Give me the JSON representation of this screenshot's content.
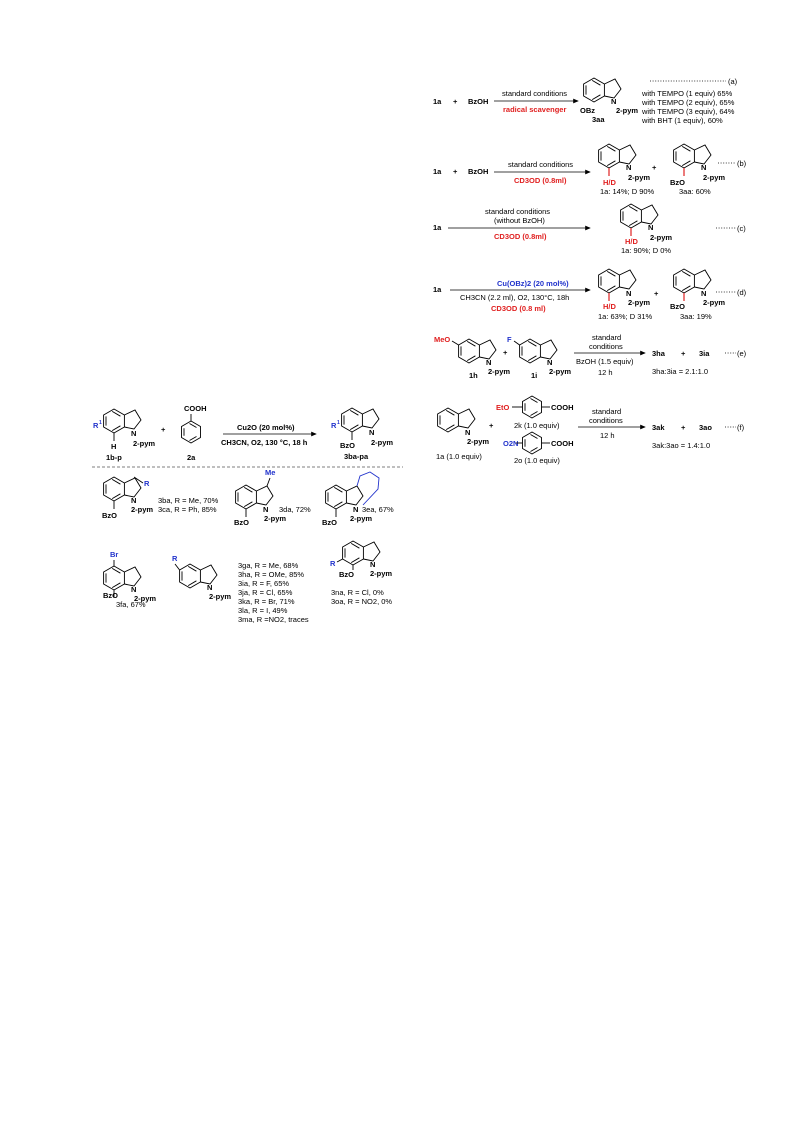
{
  "colors": {
    "red": "#e02020",
    "blue": "#2233cc",
    "black": "#000000"
  },
  "scheme_left": {
    "reactant_1": "1b-p",
    "reactant_2": "2a",
    "acid_group": "COOH",
    "substituent": "R",
    "sub_superscript": "1",
    "h_label": "H",
    "n_label": "N",
    "pym_label": "2-pym",
    "arrow_top": "Cu2O (20 mol%)",
    "arrow_bottom": "CH3CN, O2, 130 °C, 18 h",
    "product": "3ba-pa",
    "bzo": "BzO",
    "plus": "+"
  },
  "scope": {
    "c1_label_a": "3ba, R = Me, 70%",
    "c1_label_b": "3ca, R = Ph, 85%",
    "c2_me": "Me",
    "c2_label": "3da, 72%",
    "c3_label": "3ea, 67%",
    "c4_br": "Br",
    "c4_label": "3fa, 67%",
    "c5_r": "R",
    "c5_list": [
      "3ga, R = Me, 68%",
      "3ha, R = OMe, 85%",
      "3ia, R = F, 65%",
      "3ja, R = Cl, 65%",
      "3ka, R = Br, 71%",
      "3la, R = I, 49%",
      "3ma, R =NO2, traces"
    ],
    "c6_r": "R",
    "c6_label_a": "3na, R = Cl, 0%",
    "c6_label_b": "3oa, R = NO2, 0%"
  },
  "eq_a": {
    "r1": "1a",
    "plus": "+",
    "r2": "BzOH",
    "arrow_top": "standard conditions",
    "arrow_bottom": "radical scavenger",
    "obz": "OBz",
    "pym": "2-pym",
    "product": "3aa",
    "tag": "(a)",
    "results": [
      "with TEMPO (1 equiv) 65%",
      "with TEMPO (2 equiv), 65%",
      "with TEMPO (3 equiv), 64%",
      "with BHT (1 equiv), 60%"
    ]
  },
  "eq_b": {
    "r1": "1a",
    "plus": "+",
    "r2": "BzOH",
    "arrow_top": "standard conditions",
    "arrow_bottom": "CD3OD (0.8ml)",
    "hd": "H/D",
    "pym": "2-pym",
    "bzo": "BzO",
    "p1_label": "1a: 14%; D 90%",
    "p2_label": "3aa: 60%",
    "tag": "(b)"
  },
  "eq_c": {
    "r1": "1a",
    "arrow_top1": "standard conditions",
    "arrow_top2": "(without BzOH)",
    "arrow_bottom": "CD3OD (0.8ml)",
    "hd": "H/D",
    "pym": "2-pym",
    "p_label": "1a: 90%; D 0%",
    "tag": "(c)"
  },
  "eq_d": {
    "r1": "1a",
    "arrow_top": "Cu(OBz)2 (20 mol%)",
    "arrow_mid": "CH3CN (2.2 ml), O2, 130°C, 18h",
    "arrow_bottom": "CD3OD (0.8 ml)",
    "hd": "H/D",
    "pym": "2-pym",
    "bzo": "BzO",
    "plus": "+",
    "p1_label": "1a: 63%; D 31%",
    "p2_label": "3aa: 19%",
    "tag": "(d)"
  },
  "eq_e": {
    "meo": "MeO",
    "f": "F",
    "n": "N",
    "pym": "2-pym",
    "r1": "1h",
    "r2": "1i",
    "plus": "+",
    "arrow_top1": "standard",
    "arrow_top2": "conditions",
    "arrow_bottom1": "BzOH (1.5 equiv)",
    "arrow_bottom2": "12 h",
    "p1": "3ha",
    "p2": "3ia",
    "ratio": "3ha:3ia = 2.1:1.0",
    "tag": "(e)"
  },
  "eq_f": {
    "n": "N",
    "pym": "2-pym",
    "r1": "1a (1.0 equiv)",
    "eto": "EtO",
    "no2": "O2N",
    "cooh": "COOH",
    "r2": "2k (1.0 equiv)",
    "r3": "2o (1.0 equiv)",
    "plus": "+",
    "arrow_top1": "standard",
    "arrow_top2": "conditions",
    "arrow_bottom": "12 h",
    "p1": "3ak",
    "p2": "3ao",
    "ratio": "3ak:3ao = 1.4:1.0",
    "tag": "(f)"
  }
}
